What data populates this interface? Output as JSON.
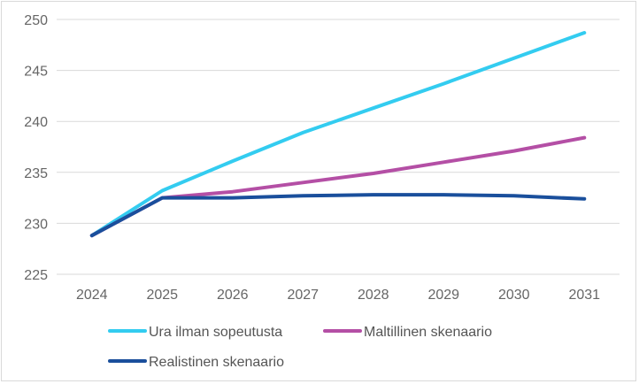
{
  "chart_data": {
    "type": "line",
    "title": "",
    "xlabel": "",
    "ylabel": "",
    "x": [
      "2024",
      "2025",
      "2026",
      "2027",
      "2028",
      "2029",
      "2030",
      "2031"
    ],
    "ylim": [
      225,
      250
    ],
    "yticks": [
      "225",
      "230",
      "235",
      "240",
      "245",
      "250"
    ],
    "grid": true,
    "legend_position": "bottom",
    "series": [
      {
        "name": "Ura ilman sopeutusta",
        "color": "#33ccf0",
        "values": [
          228.8,
          233.2,
          236.1,
          238.9,
          241.3,
          243.7,
          246.2,
          248.7
        ]
      },
      {
        "name": "Maltillinen skenaario",
        "color": "#b44fa5",
        "values": [
          228.8,
          232.5,
          233.1,
          234.0,
          234.9,
          236.0,
          237.1,
          238.4
        ]
      },
      {
        "name": "Realistinen skenaario",
        "color": "#1a4f9c",
        "values": [
          228.8,
          232.5,
          232.5,
          232.7,
          232.8,
          232.8,
          232.7,
          232.4
        ]
      }
    ]
  }
}
